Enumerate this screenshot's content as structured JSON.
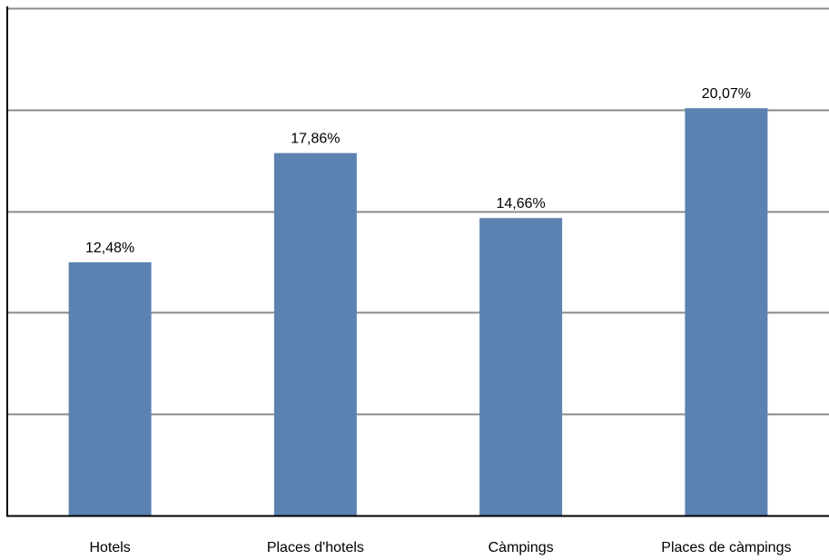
{
  "chart_data": {
    "type": "bar",
    "categories": [
      "Hotels",
      "Places d'hotels",
      "Càmpings",
      "Places de càmpings"
    ],
    "values": [
      12.48,
      17.86,
      14.66,
      20.07
    ],
    "value_labels": [
      "12,48%",
      "17,86%",
      "14,66%",
      "20,07%"
    ],
    "ylim": [
      0,
      25
    ],
    "yticks": [
      0,
      5,
      10,
      15,
      20,
      25
    ],
    "y_tick_labels_shown": false,
    "grid": true,
    "legend": "none",
    "colors": {
      "bar": "#5b82b0",
      "grid": "#8a8a8a",
      "axis": "#000000"
    }
  }
}
